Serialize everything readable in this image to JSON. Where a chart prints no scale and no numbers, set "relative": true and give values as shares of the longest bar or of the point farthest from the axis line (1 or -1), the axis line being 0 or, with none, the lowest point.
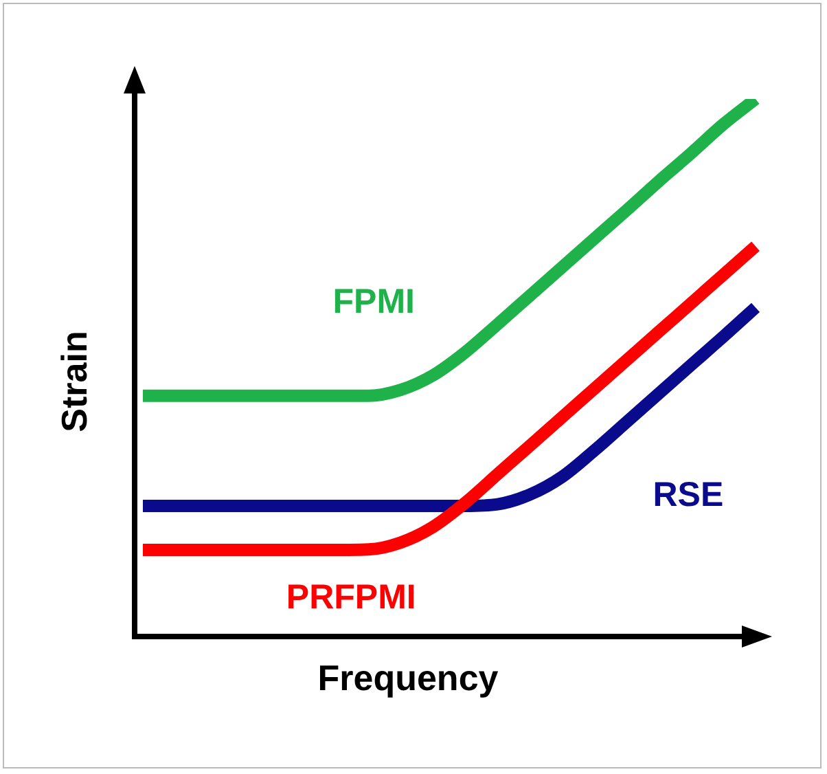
{
  "chart_data": {
    "type": "line",
    "relative": true,
    "xlabel": "Frequency",
    "ylabel": "Strain",
    "legend": false,
    "marker": "none",
    "line_style": "solid",
    "categories": [
      null,
      null,
      null,
      null,
      null,
      null,
      null,
      null,
      null,
      null,
      null,
      null,
      null,
      null,
      null,
      null,
      null,
      null,
      null,
      null
    ],
    "series": [
      {
        "name": "FPMI",
        "color": "#1fb24a",
        "values": [
          0.448,
          0.448,
          0.448,
          0.448,
          0.448,
          0.448,
          0.448,
          0.448,
          0.459,
          0.486,
          0.529,
          0.581,
          0.634,
          0.687,
          0.74,
          0.793,
          0.847,
          0.899,
          0.953,
          1
        ]
      },
      {
        "name": "RSE",
        "color": "#0a0a8c",
        "values": [
          0.243,
          0.243,
          0.243,
          0.243,
          0.243,
          0.243,
          0.243,
          0.243,
          0.243,
          0.243,
          0.243,
          0.246,
          0.264,
          0.297,
          0.346,
          0.399,
          0.452,
          0.505,
          0.558,
          0.612
        ]
      },
      {
        "name": "PRFPMI",
        "color": "#ff0000",
        "values": [
          0.161,
          0.161,
          0.161,
          0.161,
          0.161,
          0.161,
          0.161,
          0.162,
          0.175,
          0.204,
          0.249,
          0.302,
          0.355,
          0.408,
          0.461,
          0.514,
          0.567,
          0.62,
          0.673,
          0.726
        ]
      }
    ]
  }
}
